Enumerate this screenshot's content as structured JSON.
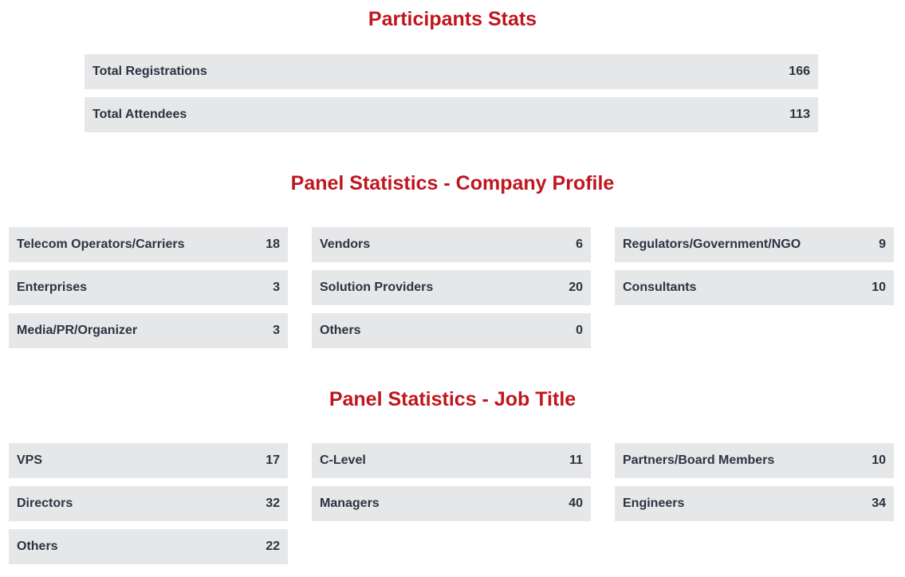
{
  "participants": {
    "title": "Participants Stats",
    "rows": [
      {
        "label": "Total Registrations",
        "value": "166"
      },
      {
        "label": "Total Attendees",
        "value": "113"
      }
    ]
  },
  "company_profile": {
    "title": "Panel Statistics - Company Profile",
    "rows": [
      {
        "label": "Telecom Operators/Carriers",
        "value": "18"
      },
      {
        "label": "Vendors",
        "value": "6"
      },
      {
        "label": "Regulators/Government/NGO",
        "value": "9"
      },
      {
        "label": "Enterprises",
        "value": "3"
      },
      {
        "label": "Solution Providers",
        "value": "20"
      },
      {
        "label": "Consultants",
        "value": "10"
      },
      {
        "label": "Media/PR/Organizer",
        "value": "3"
      },
      {
        "label": "Others",
        "value": "0"
      }
    ]
  },
  "job_title": {
    "title": "Panel Statistics - Job Title",
    "rows": [
      {
        "label": "VPS",
        "value": "17"
      },
      {
        "label": "C-Level",
        "value": "11"
      },
      {
        "label": "Partners/Board Members",
        "value": "10"
      },
      {
        "label": "Directors",
        "value": "32"
      },
      {
        "label": "Managers",
        "value": "40"
      },
      {
        "label": "Engineers",
        "value": "34"
      },
      {
        "label": "Others",
        "value": "22"
      }
    ]
  },
  "colors": {
    "title_red": "#c0161f",
    "row_background": "#e6e7e9",
    "row_text": "#2d3340"
  }
}
